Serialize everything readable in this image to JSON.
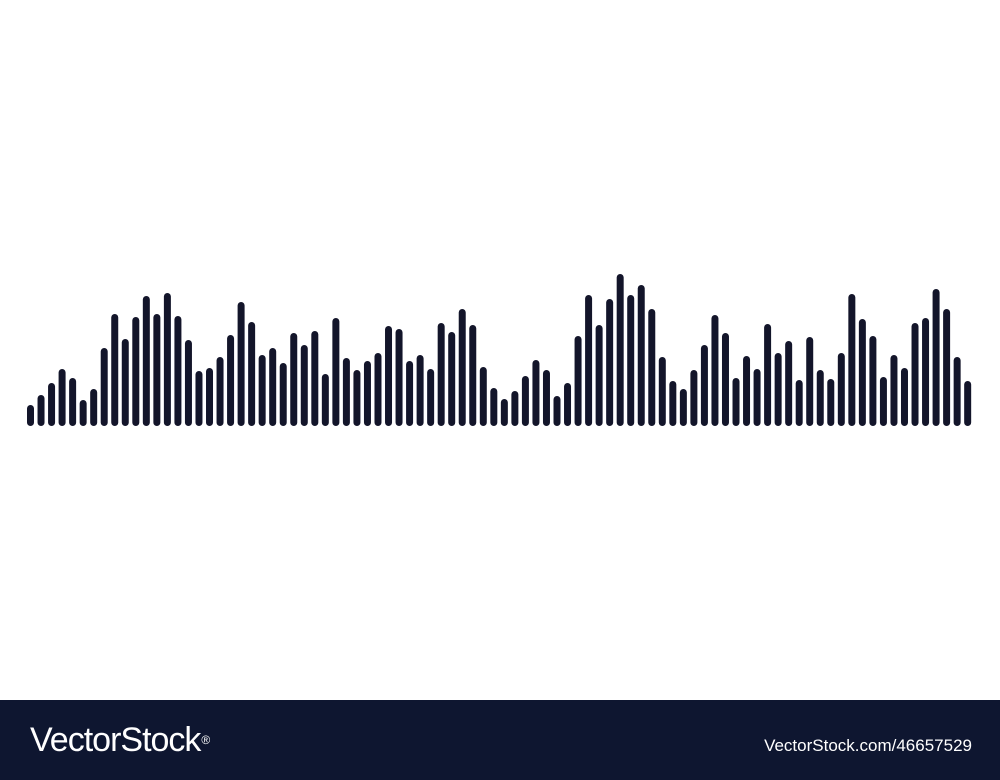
{
  "colors": {
    "background": "#ffffff",
    "bars": "#13152a",
    "footer": "#0e1630",
    "footer_text": "#ffffff"
  },
  "waveform": {
    "levels": [
      21,
      31,
      43,
      57,
      48,
      26,
      37,
      78,
      112,
      87,
      109,
      130,
      112,
      133,
      110,
      86,
      55,
      58,
      69,
      91,
      124,
      104,
      71,
      78,
      63,
      93,
      81,
      95,
      52,
      108,
      68,
      56,
      65,
      73,
      100,
      97,
      65,
      71,
      57,
      103,
      94,
      117,
      101,
      59,
      38,
      27,
      35,
      50,
      66,
      56,
      30,
      43,
      90,
      131,
      101,
      127,
      152,
      131,
      141,
      117,
      69,
      45,
      37,
      56,
      81,
      111,
      93,
      48,
      70,
      57,
      102,
      73,
      85,
      46,
      89,
      56,
      47,
      73,
      132,
      107,
      90,
      49,
      71,
      58,
      103,
      108,
      137,
      117,
      69,
      45
    ]
  },
  "footer": {
    "logo_text": "VectorStock",
    "logo_mark": "®",
    "image_id": "VectorStock.com/46657529"
  }
}
